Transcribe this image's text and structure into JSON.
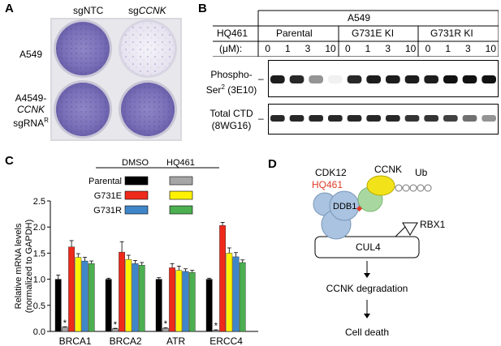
{
  "panels": {
    "a": "A",
    "b": "B",
    "c": "C",
    "d": "D"
  },
  "panel_a": {
    "col_left_prefix": "sg",
    "col_left_suffix": "NTC",
    "col_right_prefix": "sg",
    "col_right_suffix": "CCNK",
    "row1": "A549",
    "row2_line1": "A4549-",
    "row2_line2": "CCNK",
    "row2_line3": "sgRNA",
    "row2_sup": "R"
  },
  "panel_b": {
    "cell_line": "A549",
    "compound": "HQ461",
    "unit": "(μM):",
    "groups": [
      "Parental",
      "G731E KI",
      "G731R KI"
    ],
    "doses": [
      "0",
      "1",
      "3",
      "10",
      "0",
      "1",
      "3",
      "10",
      "0",
      "1",
      "3",
      "10"
    ],
    "blot1_line1": "Phospho-",
    "blot1_line2a": "Ser",
    "blot1_sup": "2",
    "blot1_line2b": " (3E10)",
    "blot2_line1": "Total CTD",
    "blot2_line2": "(8WG16)",
    "dash": "–"
  },
  "panel_c": {
    "legend_col1": "DMSO",
    "legend_col2": "HQ461",
    "legend_rows": [
      "Parental",
      "G731E",
      "G731R"
    ],
    "colors": {
      "parental_dmso": "#000000",
      "parental_hq": "#a6a6a6",
      "g731e_dmso": "#ee2a1b",
      "g731e_hq": "#fff200",
      "g731r_dmso": "#3f86c8",
      "g731r_hq": "#4caf50"
    },
    "star": "*"
  },
  "chart_data": {
    "type": "bar",
    "categories": [
      "BRCA1",
      "BRCA2",
      "ATR",
      "ERCC4"
    ],
    "series": [
      {
        "name": "Parental DMSO",
        "values": [
          1.0,
          1.0,
          1.0,
          1.0
        ],
        "errors": [
          0.08,
          0.02,
          0.03,
          0.02
        ]
      },
      {
        "name": "Parental HQ461",
        "values": [
          0.08,
          0.05,
          0.06,
          0.02
        ],
        "errors": [
          0.01,
          0.01,
          0.01,
          0.01
        ]
      },
      {
        "name": "G731E DMSO",
        "values": [
          1.62,
          1.52,
          1.22,
          2.03
        ],
        "errors": [
          0.12,
          0.2,
          0.08,
          0.06
        ]
      },
      {
        "name": "G731E HQ461",
        "values": [
          1.42,
          1.38,
          1.17,
          1.5
        ],
        "errors": [
          0.07,
          0.08,
          0.08,
          0.1
        ]
      },
      {
        "name": "G731R DMSO",
        "values": [
          1.35,
          1.3,
          1.15,
          1.43
        ],
        "errors": [
          0.07,
          0.06,
          0.05,
          0.08
        ]
      },
      {
        "name": "G731R HQ461",
        "values": [
          1.3,
          1.27,
          1.13,
          1.32
        ],
        "errors": [
          0.05,
          0.05,
          0.04,
          0.05
        ]
      }
    ],
    "ylabel_line1": "Relative mRNA levels",
    "ylabel_line2": "(normalized to GAPDH)",
    "ylim": [
      0,
      2.5
    ],
    "yticks": [
      "0.0",
      "0.5",
      "1.0",
      "1.5",
      "2.0",
      "2.5"
    ],
    "legend": "top"
  },
  "panel_d": {
    "cdk12": "CDK12",
    "ccnk": "CCNK",
    "ub": "Ub",
    "hq461": "HQ461",
    "ddb1": "DDB1",
    "rbx1": "RBX1",
    "cul4": "CUL4",
    "step1": "CCNK degradation",
    "step2": "Cell death",
    "colors": {
      "ddb1": "#a9c3e0",
      "cdk12": "#a8d8a0",
      "ccnk": "#f2e21a",
      "hq461": "#e03a26"
    }
  }
}
